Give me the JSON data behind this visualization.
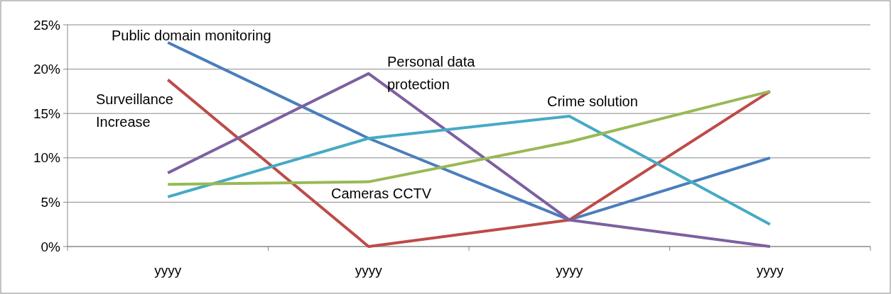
{
  "chart_data": {
    "type": "line",
    "categories": [
      "yyyy",
      "yyyy",
      "yyyy",
      "yyyy"
    ],
    "ylim": [
      0,
      25
    ],
    "yticks": [
      {
        "value": 0,
        "label": "0%"
      },
      {
        "value": 5,
        "label": "5%"
      },
      {
        "value": 10,
        "label": "10%"
      },
      {
        "value": 15,
        "label": "15%"
      },
      {
        "value": 20,
        "label": "20%"
      },
      {
        "value": 25,
        "label": "25%"
      }
    ],
    "grid": "y",
    "marker": "none",
    "line_style": "solid",
    "legend": false,
    "series": [
      {
        "name": "Public domain monitoring",
        "color": "#4a7ebb",
        "values": [
          23,
          12.2,
          3,
          10
        ]
      },
      {
        "name": "Surveillance Increase",
        "color": "#be4b48",
        "values": [
          18.8,
          0,
          3,
          17.5
        ]
      },
      {
        "name": "Personal data protection",
        "color": "#7d60a0",
        "values": [
          8.3,
          19.5,
          3,
          0
        ]
      },
      {
        "name": "Crime solution",
        "color": "#46aac5",
        "values": [
          5.6,
          12.2,
          14.7,
          2.5
        ]
      },
      {
        "name": "Cameras CCTV",
        "color": "#98b954",
        "values": [
          7,
          7.3,
          11.8,
          17.5
        ]
      }
    ]
  }
}
